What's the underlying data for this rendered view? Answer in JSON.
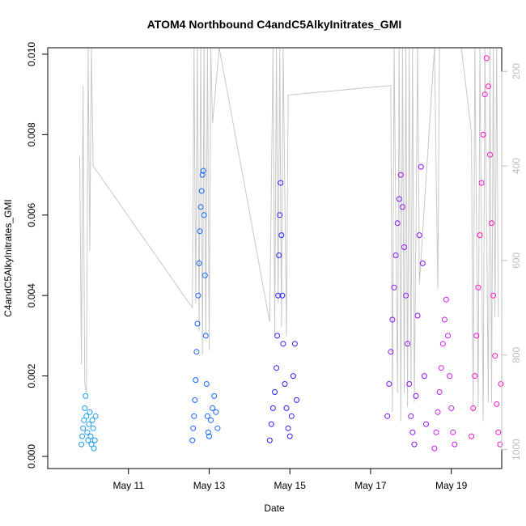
{
  "chart_data": {
    "type": "scatter",
    "title": "ATOM4 Northbound C4andC5AlkyInitrates_GMI",
    "xlabel": "Date",
    "ylabel": "C4andC5AlkyInitrates_GMI",
    "xlim": [
      "2016-05-09T00:00",
      "2016-05-20T06:00"
    ],
    "ylim": [
      0,
      0.0101
    ],
    "x_ticks": [
      {
        "x": "2016-05-11",
        "label": "May 11"
      },
      {
        "x": "2016-05-13",
        "label": "May 13"
      },
      {
        "x": "2016-05-15",
        "label": "May 15"
      },
      {
        "x": "2016-05-17",
        "label": "May 17"
      },
      {
        "x": "2016-05-19",
        "label": "May 19"
      }
    ],
    "y_ticks": [
      {
        "y": 0.0,
        "label": "0.000"
      },
      {
        "y": 0.002,
        "label": "0.002"
      },
      {
        "y": 0.004,
        "label": "0.004"
      },
      {
        "y": 0.006,
        "label": "0.006"
      },
      {
        "y": 0.008,
        "label": "0.008"
      },
      {
        "y": 0.01,
        "label": "0.010"
      }
    ],
    "y2_axis": {
      "note": "right-hand pressure axis (inverted), gray",
      "range_top": 150,
      "range_bottom": 1040,
      "color": "#bdbdbd",
      "ticks": [
        {
          "y": 200,
          "label": "200"
        },
        {
          "y": 400,
          "label": "400"
        },
        {
          "y": 600,
          "label": "600"
        },
        {
          "y": 800,
          "label": "800"
        },
        {
          "y": 1000,
          "label": "1000"
        }
      ]
    },
    "series": [
      {
        "color": "#1e9bf0",
        "points": [
          [
            "2016-05-09T20:00",
            0.0003
          ],
          [
            "2016-05-09T20:30",
            0.0005
          ],
          [
            "2016-05-09T21:00",
            0.0007
          ],
          [
            "2016-05-09T21:30",
            0.0009
          ],
          [
            "2016-05-09T22:00",
            0.0012
          ],
          [
            "2016-05-09T22:30",
            0.0015
          ],
          [
            "2016-05-09T23:00",
            0.001
          ],
          [
            "2016-05-09T23:30",
            0.0006
          ],
          [
            "2016-05-10T00:00",
            0.0004
          ],
          [
            "2016-05-10T00:30",
            0.0008
          ],
          [
            "2016-05-10T01:00",
            0.0011
          ],
          [
            "2016-05-10T01:30",
            0.0005
          ],
          [
            "2016-05-10T02:00",
            0.0003
          ],
          [
            "2016-05-10T02:30",
            0.0009
          ],
          [
            "2016-05-10T03:00",
            0.0007
          ],
          [
            "2016-05-10T03:30",
            0.0002
          ],
          [
            "2016-05-10T04:00",
            0.0004
          ],
          [
            "2016-05-10T04:30",
            0.001
          ]
        ]
      },
      {
        "color": "#1466ff",
        "points": [
          [
            "2016-05-12T14:00",
            0.0004
          ],
          [
            "2016-05-12T14:30",
            0.0007
          ],
          [
            "2016-05-12T15:00",
            0.001
          ],
          [
            "2016-05-12T15:30",
            0.0014
          ],
          [
            "2016-05-12T16:00",
            0.0019
          ],
          [
            "2016-05-12T16:30",
            0.0026
          ],
          [
            "2016-05-12T17:00",
            0.0033
          ],
          [
            "2016-05-12T17:30",
            0.004
          ],
          [
            "2016-05-12T18:00",
            0.0048
          ],
          [
            "2016-05-12T18:30",
            0.0056
          ],
          [
            "2016-05-12T19:00",
            0.0062
          ],
          [
            "2016-05-12T19:30",
            0.0066
          ],
          [
            "2016-05-12T20:00",
            0.007
          ],
          [
            "2016-05-12T20:30",
            0.0071
          ],
          [
            "2016-05-12T21:00",
            0.006
          ],
          [
            "2016-05-12T21:30",
            0.0045
          ],
          [
            "2016-05-12T22:00",
            0.003
          ],
          [
            "2016-05-12T22:30",
            0.0018
          ],
          [
            "2016-05-12T23:00",
            0.001
          ],
          [
            "2016-05-12T23:30",
            0.0006
          ],
          [
            "2016-05-13T00:00",
            0.0005
          ],
          [
            "2016-05-13T01:00",
            0.0009
          ],
          [
            "2016-05-13T02:00",
            0.0012
          ],
          [
            "2016-05-13T03:00",
            0.0015
          ],
          [
            "2016-05-13T04:00",
            0.0011
          ],
          [
            "2016-05-13T05:00",
            0.0007
          ]
        ]
      },
      {
        "color": "#2b1fff",
        "points": [
          [
            "2016-05-14T12:00",
            0.0004
          ],
          [
            "2016-05-14T13:00",
            0.0008
          ],
          [
            "2016-05-14T14:00",
            0.0012
          ],
          [
            "2016-05-14T15:00",
            0.0016
          ],
          [
            "2016-05-14T16:00",
            0.0022
          ],
          [
            "2016-05-14T16:30",
            0.003
          ],
          [
            "2016-05-14T17:00",
            0.004
          ],
          [
            "2016-05-14T17:30",
            0.005
          ],
          [
            "2016-05-14T18:00",
            0.006
          ],
          [
            "2016-05-14T18:30",
            0.0068
          ],
          [
            "2016-05-14T19:00",
            0.0055
          ],
          [
            "2016-05-14T19:30",
            0.004
          ],
          [
            "2016-05-14T20:00",
            0.0028
          ],
          [
            "2016-05-14T21:00",
            0.0018
          ],
          [
            "2016-05-14T22:00",
            0.0012
          ],
          [
            "2016-05-14T23:00",
            0.0007
          ],
          [
            "2016-05-15T00:00",
            0.0005
          ],
          [
            "2016-05-15T01:00",
            0.001
          ],
          [
            "2016-05-15T02:00",
            0.002
          ],
          [
            "2016-05-15T03:00",
            0.0028
          ],
          [
            "2016-05-15T04:00",
            0.0014
          ]
        ]
      },
      {
        "color": "#8a13ff",
        "points": [
          [
            "2016-05-17T10:00",
            0.001
          ],
          [
            "2016-05-17T11:00",
            0.0018
          ],
          [
            "2016-05-17T12:00",
            0.0026
          ],
          [
            "2016-05-17T13:00",
            0.0034
          ],
          [
            "2016-05-17T14:00",
            0.0042
          ],
          [
            "2016-05-17T15:00",
            0.005
          ],
          [
            "2016-05-17T16:00",
            0.0058
          ],
          [
            "2016-05-17T17:00",
            0.0064
          ],
          [
            "2016-05-17T18:00",
            0.007
          ],
          [
            "2016-05-17T19:00",
            0.0062
          ],
          [
            "2016-05-17T20:00",
            0.0052
          ],
          [
            "2016-05-17T21:00",
            0.004
          ],
          [
            "2016-05-17T22:00",
            0.0028
          ],
          [
            "2016-05-17T23:00",
            0.0018
          ],
          [
            "2016-05-18T00:00",
            0.001
          ],
          [
            "2016-05-18T01:00",
            0.0006
          ],
          [
            "2016-05-18T02:00",
            0.0003
          ],
          [
            "2016-05-18T03:00",
            0.0015
          ],
          [
            "2016-05-18T04:00",
            0.0035
          ],
          [
            "2016-05-18T05:00",
            0.0055
          ],
          [
            "2016-05-18T06:00",
            0.0072
          ],
          [
            "2016-05-18T07:00",
            0.0048
          ],
          [
            "2016-05-18T08:00",
            0.002
          ],
          [
            "2016-05-18T09:00",
            0.0008
          ]
        ]
      },
      {
        "color": "#cc1ef0",
        "points": [
          [
            "2016-05-18T14:00",
            0.0002
          ],
          [
            "2016-05-18T15:00",
            0.0006
          ],
          [
            "2016-05-18T16:00",
            0.0011
          ],
          [
            "2016-05-18T17:00",
            0.0016
          ],
          [
            "2016-05-18T18:00",
            0.0022
          ],
          [
            "2016-05-18T19:00",
            0.0028
          ],
          [
            "2016-05-18T20:00",
            0.0034
          ],
          [
            "2016-05-18T21:00",
            0.0039
          ],
          [
            "2016-05-18T22:00",
            0.003
          ],
          [
            "2016-05-18T23:00",
            0.002
          ],
          [
            "2016-05-19T00:00",
            0.0012
          ],
          [
            "2016-05-19T01:00",
            0.0006
          ],
          [
            "2016-05-19T02:00",
            0.0003
          ]
        ]
      },
      {
        "color": "#ff10c8",
        "points": [
          [
            "2016-05-19T12:00",
            0.0005
          ],
          [
            "2016-05-19T13:00",
            0.0012
          ],
          [
            "2016-05-19T14:00",
            0.002
          ],
          [
            "2016-05-19T15:00",
            0.003
          ],
          [
            "2016-05-19T16:00",
            0.0042
          ],
          [
            "2016-05-19T17:00",
            0.0055
          ],
          [
            "2016-05-19T18:00",
            0.0068
          ],
          [
            "2016-05-19T19:00",
            0.008
          ],
          [
            "2016-05-19T20:00",
            0.009
          ],
          [
            "2016-05-19T21:00",
            0.0099
          ],
          [
            "2016-05-19T22:00",
            0.0092
          ],
          [
            "2016-05-19T23:00",
            0.0075
          ],
          [
            "2016-05-20T00:00",
            0.0058
          ],
          [
            "2016-05-20T01:00",
            0.004
          ],
          [
            "2016-05-20T02:00",
            0.0025
          ],
          [
            "2016-05-20T03:00",
            0.0013
          ],
          [
            "2016-05-20T04:00",
            0.0006
          ],
          [
            "2016-05-20T05:00",
            0.0003
          ],
          [
            "2016-05-20T05:30",
            0.0018
          ]
        ]
      }
    ],
    "altitude_trace": {
      "color": "#c8c8c8",
      "points": [
        [
          "2016-05-09T19:00",
          380
        ],
        [
          "2016-05-09T20:00",
          820
        ],
        [
          "2016-05-09T21:00",
          230
        ],
        [
          "2016-05-09T22:00",
          860
        ],
        [
          "2016-05-09T23:00",
          880
        ],
        [
          "2016-05-10T00:00",
          140
        ],
        [
          "2016-05-10T01:00",
          580
        ],
        [
          "2016-05-10T02:00",
          140
        ],
        [
          "2016-05-10T03:00",
          400
        ],
        [
          "2016-05-12T14:00",
          700
        ],
        [
          "2016-05-12T15:00",
          140
        ],
        [
          "2016-05-12T16:00",
          690
        ],
        [
          "2016-05-12T17:00",
          140
        ],
        [
          "2016-05-12T18:00",
          750
        ],
        [
          "2016-05-12T19:00",
          140
        ],
        [
          "2016-05-12T20:00",
          800
        ],
        [
          "2016-05-12T21:00",
          140
        ],
        [
          "2016-05-12T22:00",
          760
        ],
        [
          "2016-05-12T23:00",
          140
        ],
        [
          "2016-05-13T00:00",
          790
        ],
        [
          "2016-05-13T01:00",
          140
        ],
        [
          "2016-05-13T02:00",
          310
        ],
        [
          "2016-05-13T06:00",
          120
        ],
        [
          "2016-05-14T12:00",
          730
        ],
        [
          "2016-05-14T14:00",
          140
        ],
        [
          "2016-05-14T15:00",
          760
        ],
        [
          "2016-05-14T16:00",
          140
        ],
        [
          "2016-05-14T17:00",
          690
        ],
        [
          "2016-05-14T18:00",
          140
        ],
        [
          "2016-05-14T19:00",
          740
        ],
        [
          "2016-05-14T20:00",
          140
        ],
        [
          "2016-05-14T22:00",
          760
        ],
        [
          "2016-05-14T23:00",
          250
        ],
        [
          "2016-05-17T12:00",
          230
        ],
        [
          "2016-05-17T13:00",
          920
        ],
        [
          "2016-05-17T14:00",
          140
        ],
        [
          "2016-05-17T16:00",
          880
        ],
        [
          "2016-05-17T17:00",
          140
        ],
        [
          "2016-05-17T18:00",
          940
        ],
        [
          "2016-05-17T19:00",
          140
        ],
        [
          "2016-05-17T20:00",
          880
        ],
        [
          "2016-05-17T21:00",
          140
        ],
        [
          "2016-05-17T22:00",
          910
        ],
        [
          "2016-05-17T23:00",
          140
        ],
        [
          "2016-05-18T00:00",
          860
        ],
        [
          "2016-05-18T01:00",
          140
        ],
        [
          "2016-05-18T02:00",
          900
        ],
        [
          "2016-05-18T04:00",
          140
        ],
        [
          "2016-05-18T05:00",
          650
        ],
        [
          "2016-05-18T14:00",
          140
        ],
        [
          "2016-05-18T16:00",
          660
        ],
        [
          "2016-05-18T17:00",
          140
        ],
        [
          "2016-05-19T06:00",
          140
        ],
        [
          "2016-05-19T12:00",
          330
        ],
        [
          "2016-05-19T13:00",
          920
        ],
        [
          "2016-05-19T14:00",
          140
        ],
        [
          "2016-05-19T16:00",
          910
        ],
        [
          "2016-05-19T17:00",
          140
        ],
        [
          "2016-05-19T19:00",
          940
        ],
        [
          "2016-05-19T20:00",
          140
        ],
        [
          "2016-05-19T22:00",
          900
        ],
        [
          "2016-05-19T23:00",
          140
        ],
        [
          "2016-05-20T00:00",
          900
        ],
        [
          "2016-05-20T01:00",
          140
        ],
        [
          "2016-05-20T02:00",
          720
        ],
        [
          "2016-05-20T03:00",
          140
        ],
        [
          "2016-05-20T04:00",
          720
        ]
      ]
    }
  }
}
